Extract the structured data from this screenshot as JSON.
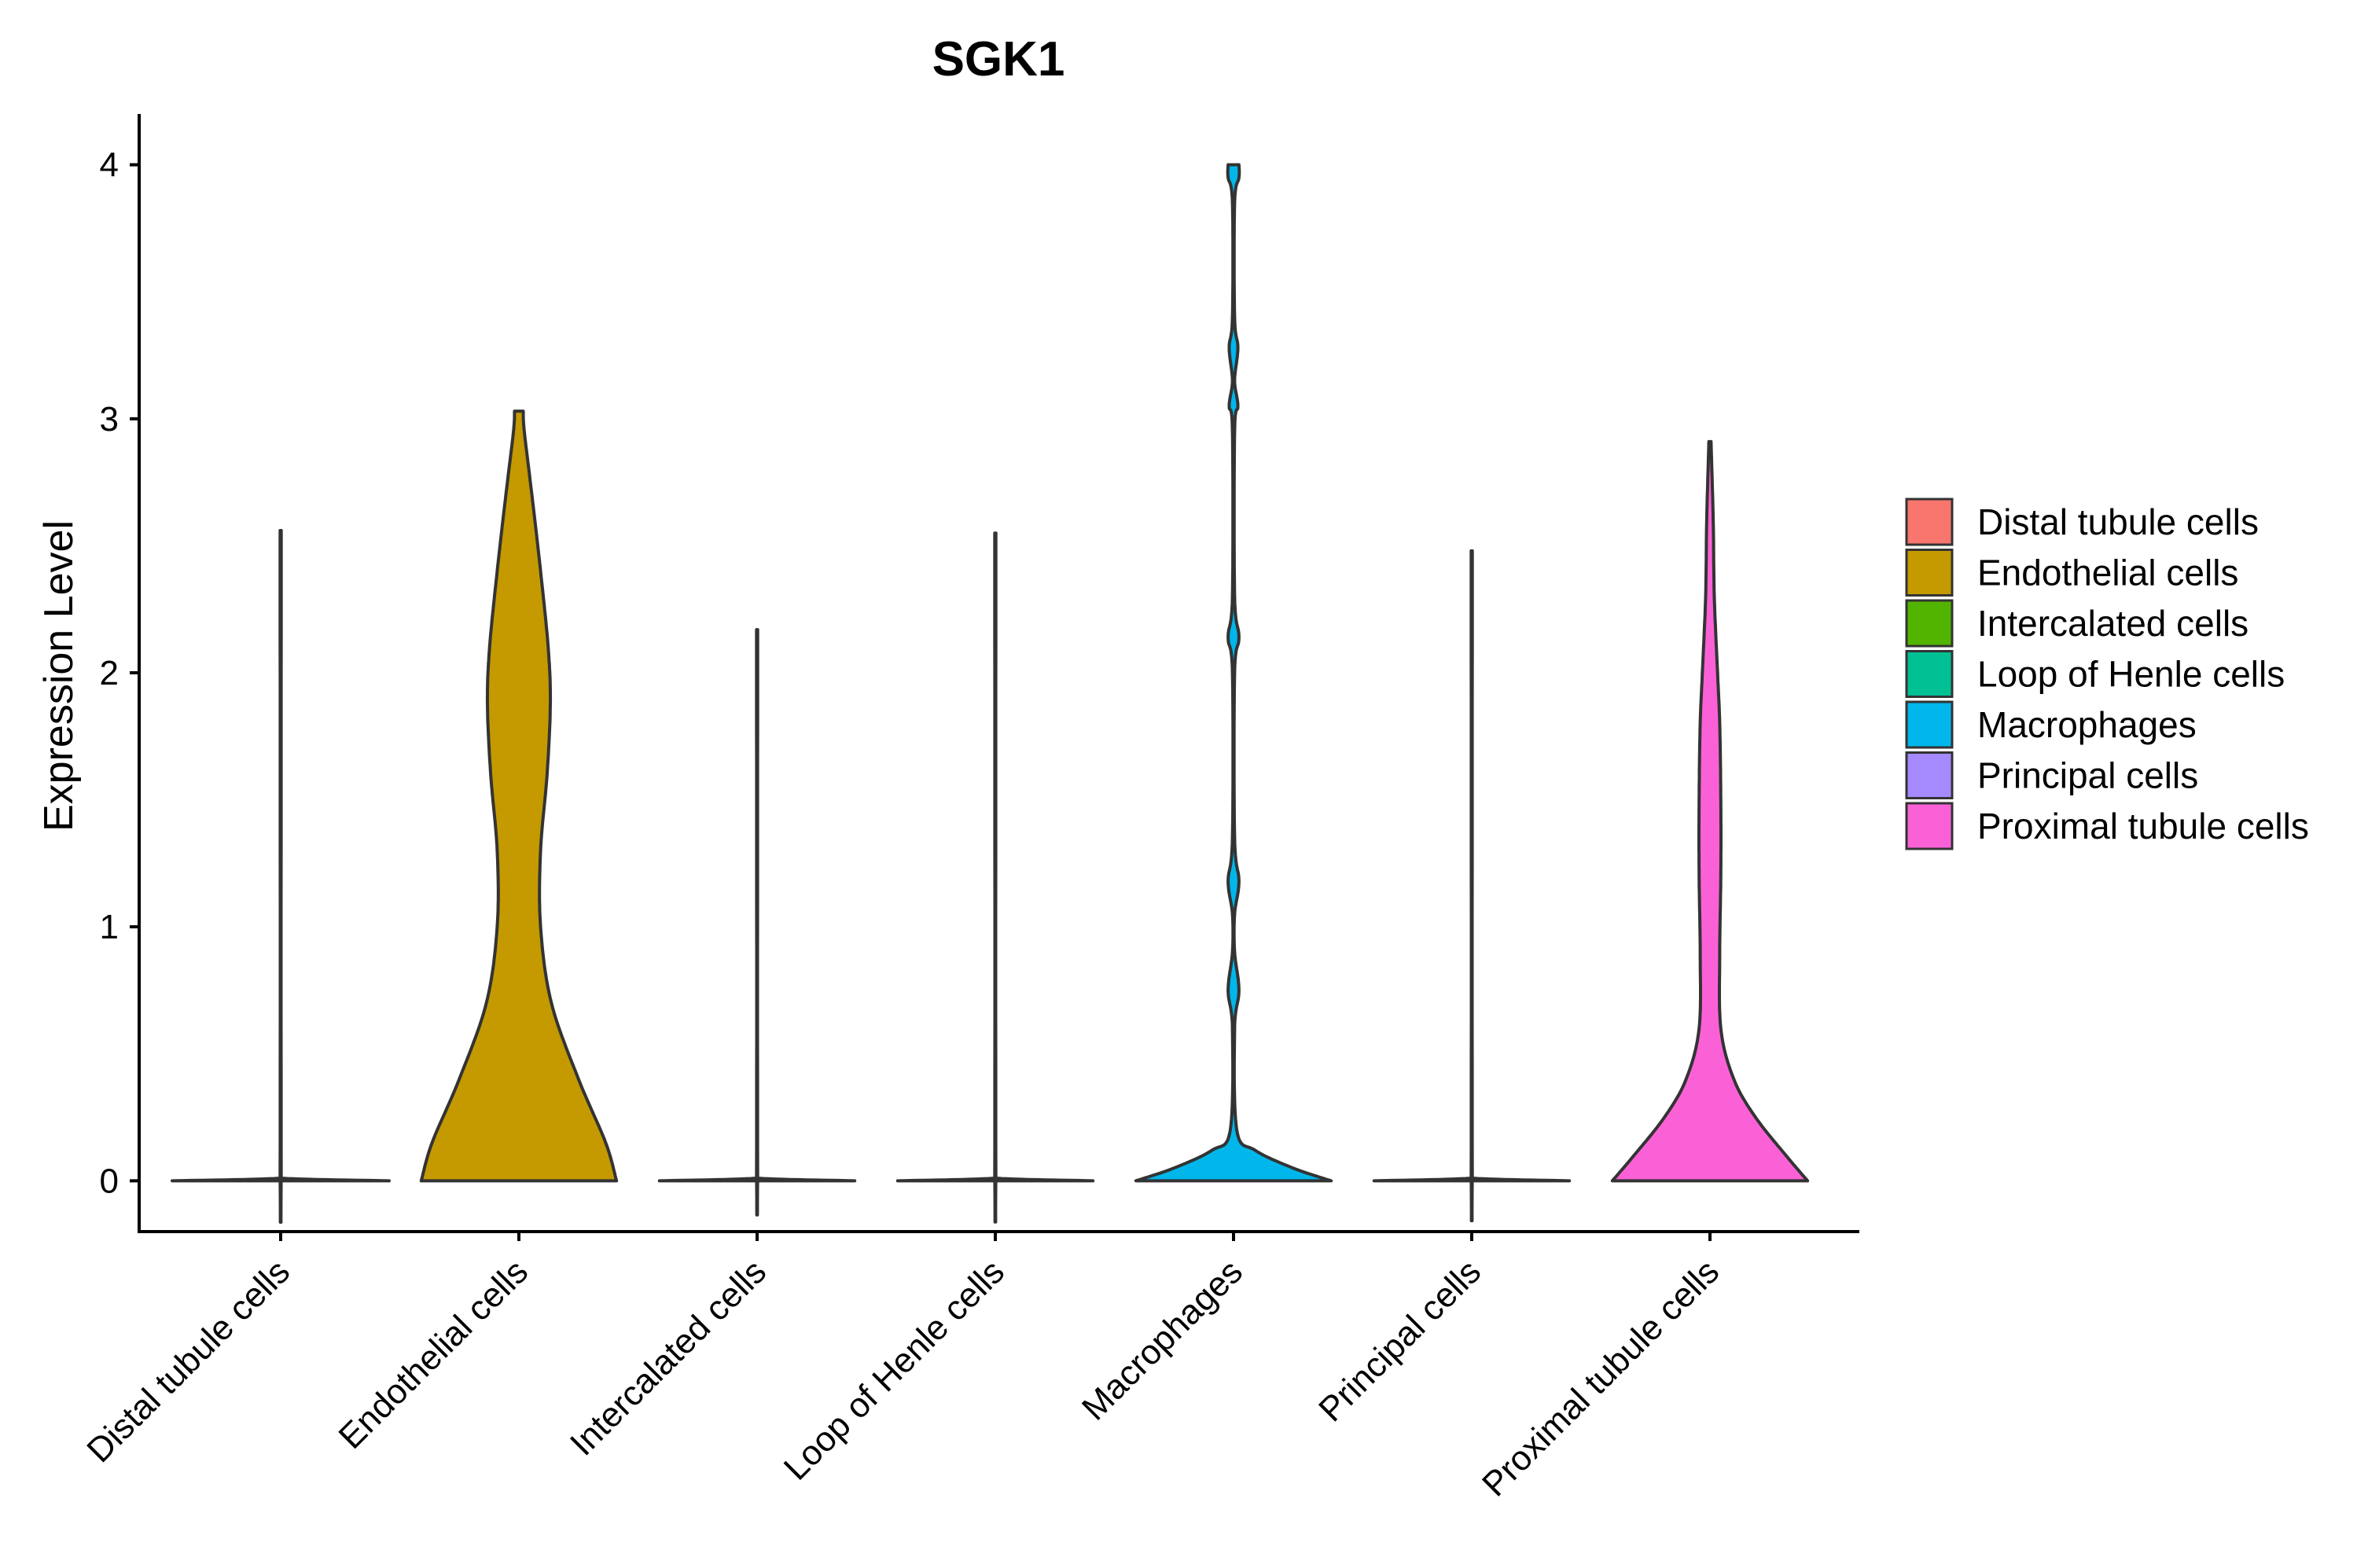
{
  "chart_data": {
    "type": "violin",
    "title": "SGK1",
    "xlabel": "",
    "ylabel": "Expression Level",
    "ylim": [
      -0.2,
      4.2
    ],
    "yticks": [
      0,
      1,
      2,
      3,
      4
    ],
    "grid": false,
    "legend_position": "right",
    "categories": [
      "Distal tubule cells",
      "Endothelial cells",
      "Intercalated cells",
      "Loop of Henle cells",
      "Macrophages",
      "Principal cells",
      "Proximal tubule cells"
    ],
    "colors": [
      "#F8766D",
      "#C49A00",
      "#53B400",
      "#00C094",
      "#00B6EB",
      "#A58AFF",
      "#FB61D7"
    ],
    "series": [
      {
        "name": "Distal tubule cells",
        "max": 2.56,
        "density": [
          [
            0,
            1.0
          ],
          [
            0.01,
            0.02
          ],
          [
            0.03,
            0.005
          ],
          [
            2.56,
            0.005
          ]
        ]
      },
      {
        "name": "Endothelial cells",
        "max": 3.03,
        "density": [
          [
            0,
            0.9
          ],
          [
            0.15,
            0.8
          ],
          [
            0.4,
            0.55
          ],
          [
            0.7,
            0.3
          ],
          [
            1.0,
            0.2
          ],
          [
            1.3,
            0.2
          ],
          [
            1.6,
            0.26
          ],
          [
            1.88,
            0.29
          ],
          [
            2.1,
            0.27
          ],
          [
            2.4,
            0.2
          ],
          [
            2.7,
            0.12
          ],
          [
            2.95,
            0.05
          ],
          [
            3.03,
            0.04
          ]
        ]
      },
      {
        "name": "Intercalated cells",
        "max": 2.17,
        "density": [
          [
            0,
            0.9
          ],
          [
            0.01,
            0.02
          ],
          [
            0.03,
            0.005
          ],
          [
            2.17,
            0.005
          ]
        ]
      },
      {
        "name": "Loop of Henle cells",
        "max": 2.55,
        "density": [
          [
            0,
            0.9
          ],
          [
            0.01,
            0.02
          ],
          [
            0.03,
            0.005
          ],
          [
            2.55,
            0.005
          ]
        ]
      },
      {
        "name": "Macrophages",
        "max": 4.0,
        "density": [
          [
            0,
            0.9
          ],
          [
            0.05,
            0.55
          ],
          [
            0.12,
            0.2
          ],
          [
            0.2,
            0.03
          ],
          [
            0.6,
            0.01
          ],
          [
            0.75,
            0.05
          ],
          [
            0.9,
            0.01
          ],
          [
            1.05,
            0.01
          ],
          [
            1.18,
            0.05
          ],
          [
            1.35,
            0.01
          ],
          [
            2.0,
            0.01
          ],
          [
            2.14,
            0.05
          ],
          [
            2.3,
            0.01
          ],
          [
            2.95,
            0.01
          ],
          [
            3.05,
            0.04
          ],
          [
            3.15,
            0.01
          ],
          [
            3.28,
            0.04
          ],
          [
            3.4,
            0.01
          ],
          [
            3.85,
            0.01
          ],
          [
            3.95,
            0.05
          ],
          [
            4.0,
            0.05
          ]
        ]
      },
      {
        "name": "Principal cells",
        "max": 2.48,
        "density": [
          [
            0,
            0.9
          ],
          [
            0.01,
            0.02
          ],
          [
            0.03,
            0.005
          ],
          [
            2.48,
            0.005
          ]
        ]
      },
      {
        "name": "Proximal tubule cells",
        "max": 2.91,
        "density": [
          [
            0,
            0.9
          ],
          [
            0.1,
            0.7
          ],
          [
            0.25,
            0.42
          ],
          [
            0.4,
            0.22
          ],
          [
            0.6,
            0.1
          ],
          [
            0.9,
            0.09
          ],
          [
            1.2,
            0.1
          ],
          [
            1.5,
            0.1
          ],
          [
            1.8,
            0.09
          ],
          [
            2.0,
            0.07
          ],
          [
            2.3,
            0.04
          ],
          [
            2.6,
            0.03
          ],
          [
            2.91,
            0.01
          ]
        ]
      }
    ],
    "legend": {
      "entries": [
        "Distal tubule cells",
        "Endothelial cells",
        "Intercalated cells",
        "Loop of Henle cells",
        "Macrophages",
        "Principal cells",
        "Proximal tubule cells"
      ]
    }
  }
}
